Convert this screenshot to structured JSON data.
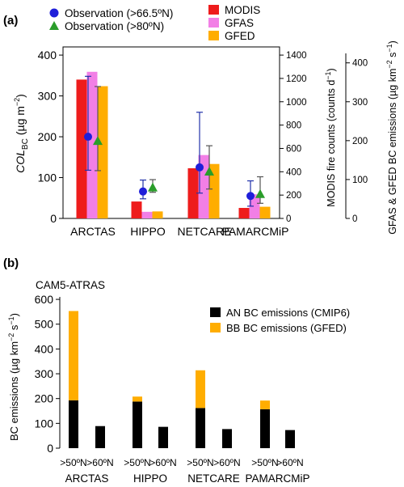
{
  "colors": {
    "obs_marker": "#1f1fd9",
    "obs80_marker": "#2a9d2a",
    "modis": "#ee1c1c",
    "gfas": "#f27fe6",
    "gfed": "#ffad00",
    "an": "#000000",
    "bb": "#ffad00",
    "errbar_obs": "#2233aa",
    "errbar_obs80": "#555555"
  },
  "chart_data": [
    {
      "panel_label": "(a)",
      "type": "bar",
      "categories": [
        "ARCTAS",
        "HIPPO",
        "NETCARE",
        "PAMARCMiP"
      ],
      "ylabel_main": "COL",
      "ylabel_sub": "BC",
      "ylabel_unit_pre": "(µg m",
      "ylabel_unit_exp": "−2",
      "ylabel_unit_post": ")",
      "ylim": [
        0,
        420
      ],
      "yticks": [
        0,
        100,
        200,
        300,
        400
      ],
      "y2label_pre": "MODIS fire counts (counts d",
      "y2label_exp": "−1",
      "y2label_post": ")",
      "y2lim": [
        0,
        1470
      ],
      "y2ticks": [
        0,
        200,
        400,
        600,
        800,
        1000,
        1200,
        1400
      ],
      "y3label_pre": "GFAS & GFED  BC emissions (µg km",
      "y3label_exp1": "−2",
      "y3label_mid": " s",
      "y3label_exp2": "−1",
      "y3label_post": ")",
      "y3lim": [
        0,
        441
      ],
      "y3ticks": [
        0,
        100,
        200,
        300,
        400
      ],
      "legend": [
        {
          "label": "Observation (>66.5ºN)",
          "kind": "circle",
          "color": "#1f1fd9"
        },
        {
          "label": "Observation (>80ºN)",
          "kind": "triangle",
          "color": "#2a9d2a"
        },
        {
          "label": "MODIS",
          "kind": "square",
          "color": "#ee1c1c"
        },
        {
          "label": "GFAS",
          "kind": "square",
          "color": "#f27fe6"
        },
        {
          "label": "GFED",
          "kind": "square",
          "color": "#ffad00"
        }
      ],
      "series": [
        {
          "name": "MODIS",
          "axis": "y2",
          "values": [
            1190,
            145,
            430,
            90
          ]
        },
        {
          "name": "GFAS",
          "axis": "y3",
          "values": [
            377,
            17,
            163,
            62
          ]
        },
        {
          "name": "GFED",
          "axis": "y3",
          "values": [
            340,
            18,
            140,
            30
          ]
        }
      ],
      "observations": [
        {
          "name": "Observation (>66.5ºN)",
          "values": [
            200,
            66,
            125,
            55
          ],
          "err_low": [
            118,
            48,
            62,
            30
          ],
          "err_high": [
            348,
            94,
            260,
            92
          ]
        },
        {
          "name": "Observation (>80ºN)",
          "values": [
            190,
            76,
            115,
            60
          ],
          "err_low": [
            117,
            64,
            72,
            37
          ],
          "err_high": [
            323,
            95,
            178,
            102
          ]
        }
      ]
    },
    {
      "panel_label": "(b)",
      "type": "bar",
      "title": "CAM5-ATRAS",
      "ylabel_pre": "BC emissions (µg km",
      "ylabel_exp1": "−2",
      "ylabel_mid": " s",
      "ylabel_exp2": "−1",
      "ylabel_post": ")",
      "ylim": [
        0,
        610
      ],
      "yticks": [
        0,
        100,
        200,
        300,
        400,
        500,
        600
      ],
      "groups": [
        "ARCTAS",
        "HIPPO",
        "NETCARE",
        "PAMARCMiP"
      ],
      "subcategories": [
        ">50ºN",
        ">60ºN"
      ],
      "legend": [
        {
          "label": "AN BC emissions (CMIP6)",
          "color": "#000000"
        },
        {
          "label": "BB BC emissions (GFED)",
          "color": "#ffad00"
        }
      ],
      "series": [
        {
          "name": "AN BC emissions (CMIP6)",
          "values": [
            [
              193,
              89
            ],
            [
              188,
              86
            ],
            [
              162,
              77
            ],
            [
              157,
              73
            ]
          ]
        },
        {
          "name": "BB BC emissions (GFED)",
          "values": [
            [
              360,
              0
            ],
            [
              20,
              0
            ],
            [
              152,
              0
            ],
            [
              35,
              0
            ]
          ]
        }
      ]
    }
  ]
}
